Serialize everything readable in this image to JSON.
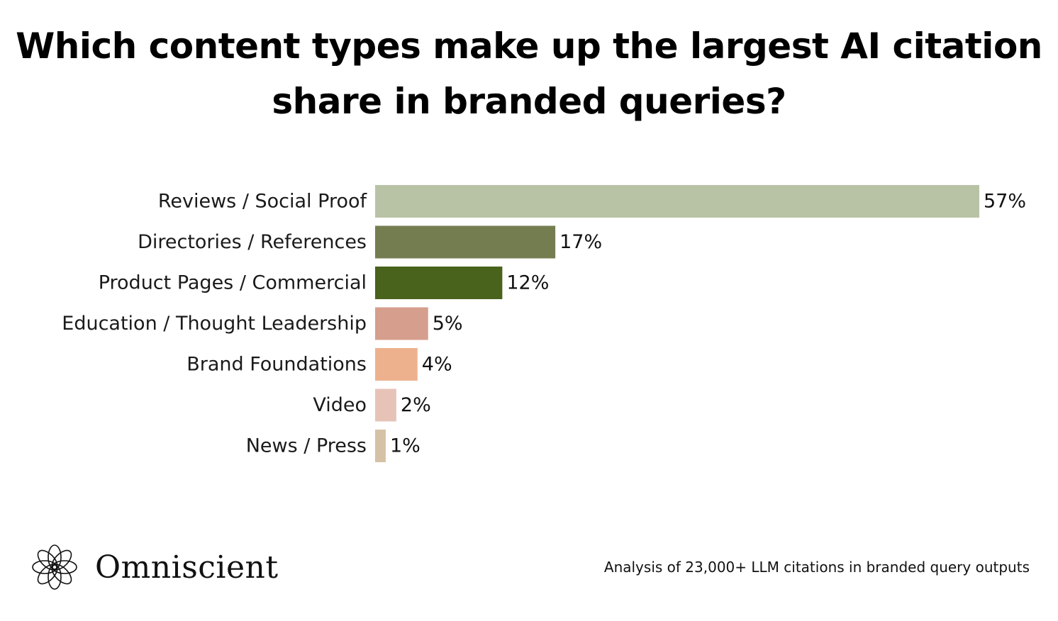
{
  "chart_data": {
    "type": "bar",
    "orientation": "horizontal",
    "title_lines": [
      "Which content types make up the largest AI citation",
      "share in branded queries?"
    ],
    "categories": [
      "Reviews / Social Proof",
      "Directories / References",
      "Product Pages / Commercial",
      "Education / Thought Leadership",
      "Brand Foundations",
      "Video",
      "News / Press"
    ],
    "values": [
      57,
      17,
      12,
      5,
      4,
      2,
      1
    ],
    "value_labels": [
      "57%",
      "17%",
      "12%",
      "5%",
      "4%",
      "2%",
      "1%"
    ],
    "colors": [
      "#b8c3a6",
      "#747d50",
      "#49621c",
      "#d69e8d",
      "#edb18e",
      "#e7c3b7",
      "#d5c1a6"
    ],
    "xlim": [
      0,
      57
    ],
    "grid": false,
    "legend": "none"
  },
  "brand": {
    "name": "Omniscient",
    "logo_icon": "omniscient-knot-logo"
  },
  "footnote": "Analysis of 23,000+ LLM citations in branded query outputs"
}
